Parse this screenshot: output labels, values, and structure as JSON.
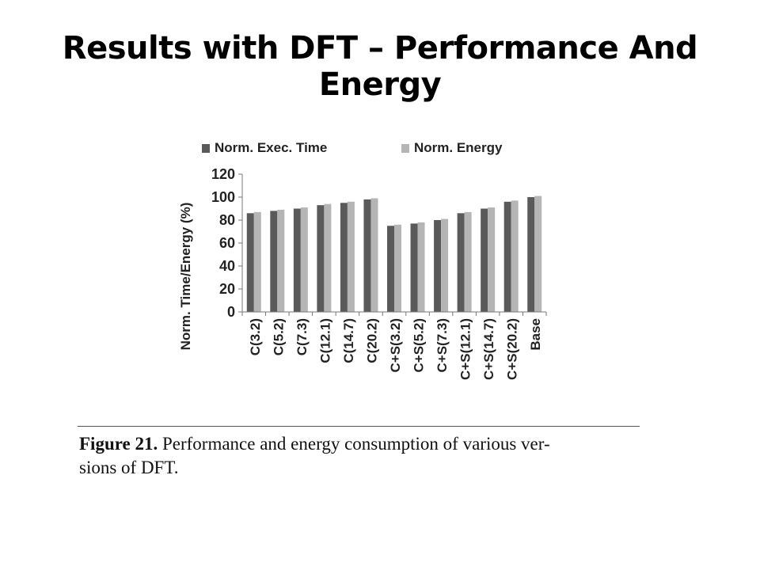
{
  "slide": {
    "title": "Results with DFT – Performance And Energy"
  },
  "figure": {
    "caption_label": "Figure 21.",
    "caption_line1": " Performance and energy consumption of various ver-",
    "caption_line2": "sions of DFT."
  },
  "chart_data": {
    "type": "bar",
    "title": "",
    "xlabel": "",
    "ylabel": "Norm. Time/Energy (%)",
    "ylim": [
      0,
      120
    ],
    "yticks": [
      "0",
      "20",
      "40",
      "60",
      "80",
      "100",
      "120"
    ],
    "grid": false,
    "legend_position": "top",
    "categories": [
      "C(3.2)",
      "C(5.2)",
      "C(7.3)",
      "C(12.1)",
      "C(14.7)",
      "C(20.2)",
      "C+S(3.2)",
      "C+S(5.2)",
      "C+S(7.3)",
      "C+S(12.1)",
      "C+S(14.7)",
      "C+S(20.2)",
      "Base"
    ],
    "series": [
      {
        "name": "Norm. Exec. Time",
        "color": "#5a5a5a",
        "values": [
          86,
          88,
          90,
          93,
          95,
          98,
          75,
          77,
          80,
          86,
          90,
          96,
          100
        ]
      },
      {
        "name": "Norm. Energy",
        "color": "#b5b5b5",
        "values": [
          87,
          89,
          91,
          94,
          96,
          99,
          76,
          78,
          81,
          87,
          91,
          97,
          101
        ]
      }
    ]
  }
}
